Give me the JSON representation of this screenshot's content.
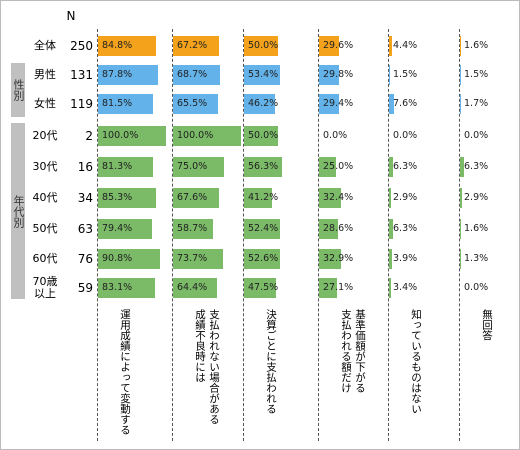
{
  "chart_data": {
    "type": "bar-table",
    "n_label": "N",
    "groups": [
      "性別",
      "年代別"
    ],
    "categories": [
      "全体",
      "男性",
      "女性",
      "20代",
      "30代",
      "40代",
      "50代",
      "60代",
      "70歳以上"
    ],
    "n": [
      250,
      131,
      119,
      2,
      16,
      34,
      63,
      76,
      59
    ],
    "row_colors": [
      "#f4a21b",
      "#63b3ea",
      "#63b3ea",
      "#7bbb68",
      "#7bbb68",
      "#7bbb68",
      "#7bbb68",
      "#7bbb68",
      "#7bbb68"
    ],
    "xlim": [
      0,
      100
    ],
    "series": [
      {
        "name": "運用成績によって変動する",
        "values": [
          84.8,
          87.8,
          81.5,
          100,
          81.3,
          85.3,
          79.4,
          90.8,
          83.1
        ],
        "value_labels": [
          "84.8%",
          "87.8%",
          "81.5%",
          "100.0%",
          "81.3%",
          "85.3%",
          "79.4%",
          "90.8%",
          "83.1%"
        ]
      },
      {
        "name": "支払われない場合がある\n成績不良時には",
        "values": [
          67.2,
          68.7,
          65.5,
          100,
          75.0,
          67.6,
          58.7,
          73.7,
          64.4
        ],
        "value_labels": [
          "67.2%",
          "68.7%",
          "65.5%",
          "100.0%",
          "75.0%",
          "67.6%",
          "58.7%",
          "73.7%",
          "64.4%"
        ]
      },
      {
        "name": "決算ごとに支払われる",
        "values": [
          50.0,
          53.4,
          46.2,
          50.0,
          56.3,
          41.2,
          52.4,
          52.6,
          47.5
        ],
        "value_labels": [
          "50.0%",
          "53.4%",
          "46.2%",
          "50.0%",
          "56.3%",
          "41.2%",
          "52.4%",
          "52.6%",
          "47.5%"
        ]
      },
      {
        "name": "基準価額が下がる\n支払われる額だけ",
        "values": [
          29.6,
          29.8,
          29.4,
          0,
          25.0,
          32.4,
          28.6,
          32.9,
          27.1
        ],
        "value_labels": [
          "29.6%",
          "29.8%",
          "29.4%",
          "0.0%",
          "25.0%",
          "32.4%",
          "28.6%",
          "32.9%",
          "27.1%"
        ]
      },
      {
        "name": "知っているものはない",
        "values": [
          4.4,
          1.5,
          7.6,
          0,
          6.3,
          2.9,
          6.3,
          3.9,
          3.4
        ],
        "value_labels": [
          "4.4%",
          "1.5%",
          "7.6%",
          "0.0%",
          "6.3%",
          "2.9%",
          "6.3%",
          "3.9%",
          "3.4%"
        ]
      },
      {
        "name": "無回答",
        "values": [
          1.6,
          1.5,
          1.7,
          0,
          6.3,
          2.9,
          1.6,
          1.3,
          0.0
        ],
        "value_labels": [
          "1.6%",
          "1.5%",
          "1.7%",
          "0.0%",
          "6.3%",
          "2.9%",
          "1.6%",
          "1.3%",
          "0.0%"
        ]
      }
    ]
  }
}
